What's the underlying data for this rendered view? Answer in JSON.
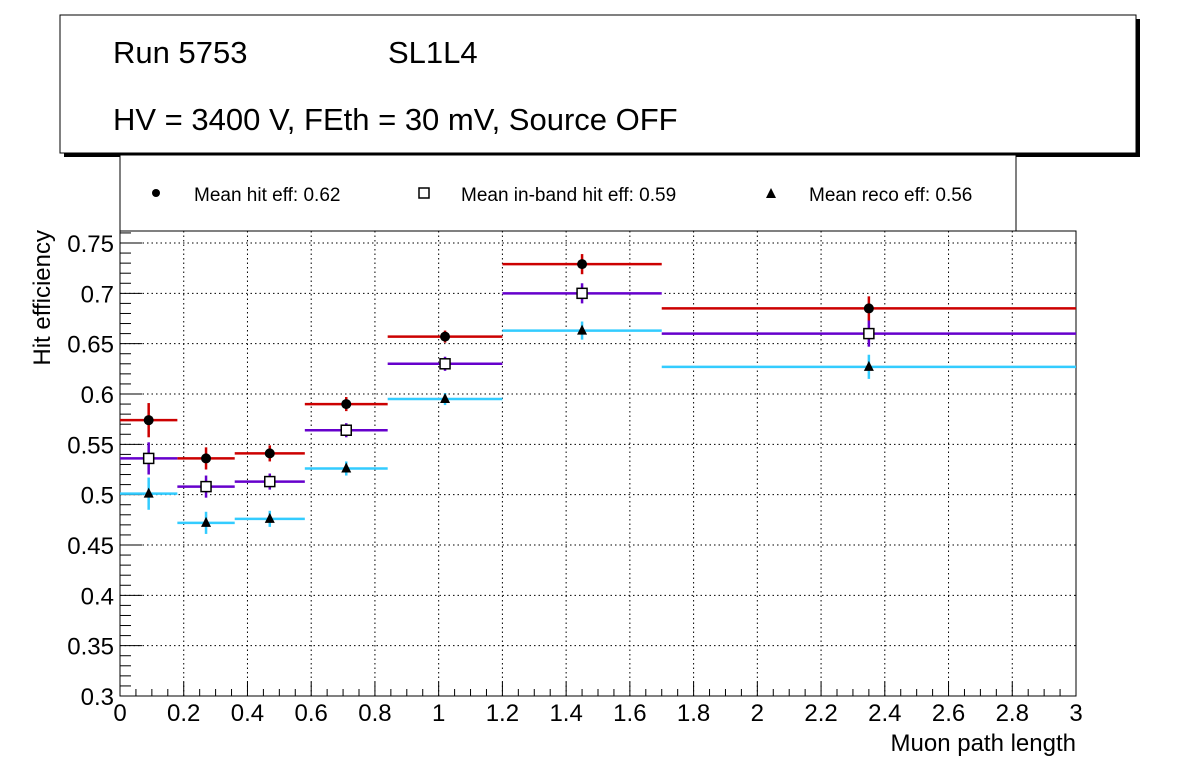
{
  "title_box": {
    "run": "Run 5753",
    "layer": "SL1L4",
    "conditions": "HV = 3400 V, FEth = 30 mV, Source OFF"
  },
  "chart_data": {
    "type": "scatter",
    "xlabel": "Muon path length",
    "ylabel": "Hit efficiency",
    "xlim": [
      0,
      3
    ],
    "ylim": [
      0.3,
      0.76
    ],
    "grid": true,
    "legend_placement": "top",
    "xticks": [
      "0",
      "0.2",
      "0.4",
      "0.6",
      "0.8",
      "1",
      "1.2",
      "1.4",
      "1.6",
      "1.8",
      "2",
      "2.2",
      "2.4",
      "2.6",
      "2.8",
      "3"
    ],
    "yticks": [
      "0.3",
      "0.35",
      "0.4",
      "0.45",
      "0.5",
      "0.55",
      "0.6",
      "0.65",
      "0.7",
      "0.75"
    ],
    "bin_edges": [
      0,
      0.18,
      0.36,
      0.58,
      0.84,
      1.2,
      1.7,
      3.0
    ],
    "x": [
      0.09,
      0.27,
      0.47,
      0.71,
      1.02,
      1.45,
      2.35
    ],
    "series": [
      {
        "name": "Mean hit  eff: 0.62",
        "marker": "circle",
        "color": "#cc0000",
        "values": [
          0.574,
          0.536,
          0.541,
          0.59,
          0.657,
          0.729,
          0.685
        ],
        "errors": [
          0.017,
          0.011,
          0.008,
          0.007,
          0.006,
          0.01,
          0.012
        ]
      },
      {
        "name": "Mean in-band hit eff: 0.59",
        "marker": "open-square",
        "color": "#6600cc",
        "values": [
          0.536,
          0.508,
          0.513,
          0.564,
          0.63,
          0.7,
          0.66
        ],
        "errors": [
          0.016,
          0.011,
          0.008,
          0.007,
          0.007,
          0.01,
          0.013
        ]
      },
      {
        "name": "Mean reco eff: 0.56",
        "marker": "triangle",
        "color": "#33ccff",
        "values": [
          0.501,
          0.472,
          0.476,
          0.526,
          0.595,
          0.663,
          0.627
        ],
        "errors": [
          0.016,
          0.011,
          0.008,
          0.007,
          0.006,
          0.009,
          0.012
        ]
      }
    ]
  }
}
